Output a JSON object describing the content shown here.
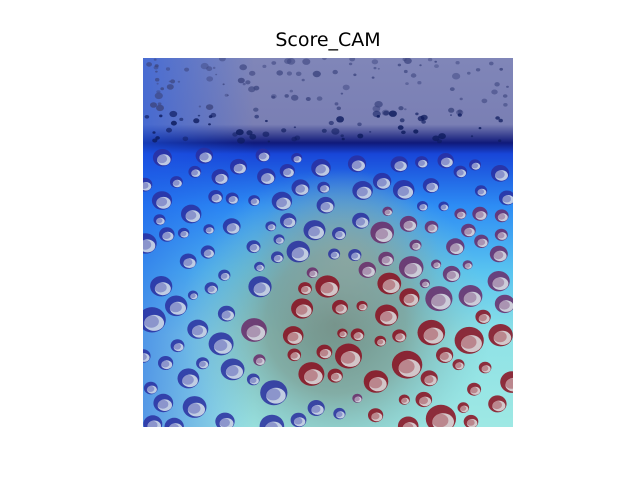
{
  "figure": {
    "title": "Score_CAM",
    "image_description_icon": "heatmap-overlay-water-droplets"
  },
  "colors": {
    "background": "#ffffff",
    "heat_top": "#7d82ba",
    "heat_band": "#1030a8",
    "heat_blue": "#2a7cf0",
    "heat_cyan": "#8fe4e8",
    "heat_warm": "#6f8e86",
    "droplet_red": "#8b0d1e",
    "droplet_highlight": "#ffffff"
  }
}
